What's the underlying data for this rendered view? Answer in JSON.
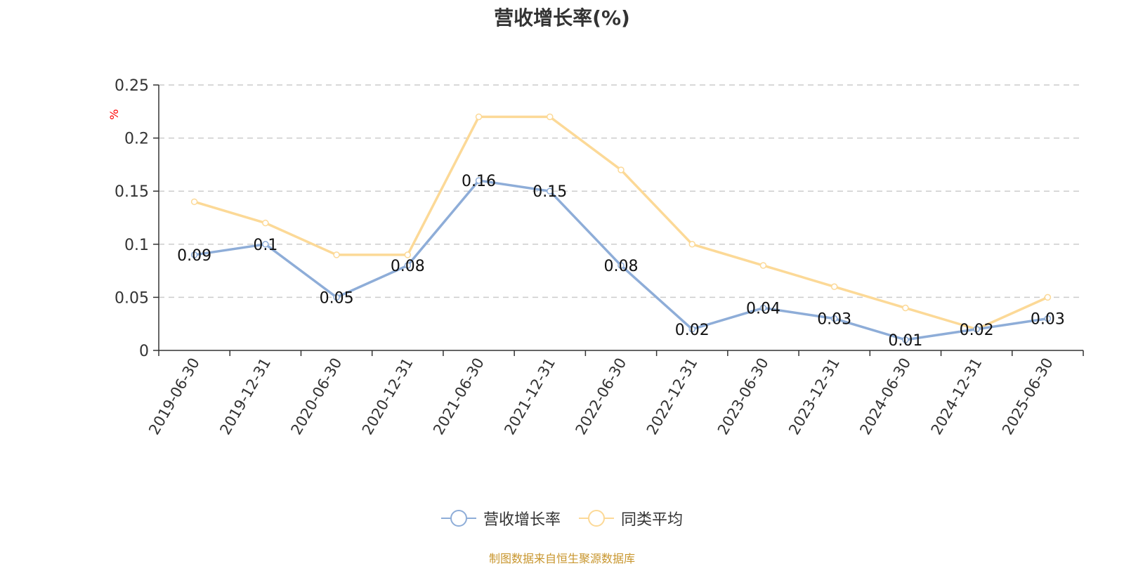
{
  "chart_data": {
    "type": "line",
    "title": "营收增长率(%)",
    "ylabel": "%",
    "xlabel": "",
    "ylim": [
      0,
      0.25
    ],
    "yticks": [
      "0",
      "0.05",
      "0.1",
      "0.15",
      "0.2",
      "0.25"
    ],
    "grid": true,
    "legend_position": "bottom-center",
    "categories": [
      "2019-06-30",
      "2019-12-31",
      "2020-06-30",
      "2020-12-31",
      "2021-06-30",
      "2021-12-31",
      "2022-06-30",
      "2022-12-31",
      "2023-06-30",
      "2023-12-31",
      "2024-06-30",
      "2024-12-31",
      "2025-06-30"
    ],
    "series": [
      {
        "name": "营收增长率",
        "color": "#8eadd8",
        "values": [
          0.09,
          0.1,
          0.05,
          0.08,
          0.16,
          0.15,
          0.08,
          0.02,
          0.04,
          0.03,
          0.01,
          0.02,
          0.03
        ],
        "labels": [
          "0.09",
          "0.1",
          "0.05",
          "0.08",
          "0.16",
          "0.15",
          "0.08",
          "0.02",
          "0.04",
          "0.03",
          "0.01",
          "0.02",
          "0.03"
        ]
      },
      {
        "name": "同类平均",
        "color": "#fcd997",
        "values": [
          0.14,
          0.12,
          0.09,
          0.09,
          0.22,
          0.22,
          0.17,
          0.1,
          0.08,
          0.06,
          0.04,
          0.02,
          0.05
        ]
      }
    ]
  },
  "source_note": "制图数据来自恒生聚源数据库",
  "colors": {
    "axis": "#333333",
    "grid": "#cccccc",
    "unit_label": "#ff0000",
    "source_note": "#c8962e"
  }
}
